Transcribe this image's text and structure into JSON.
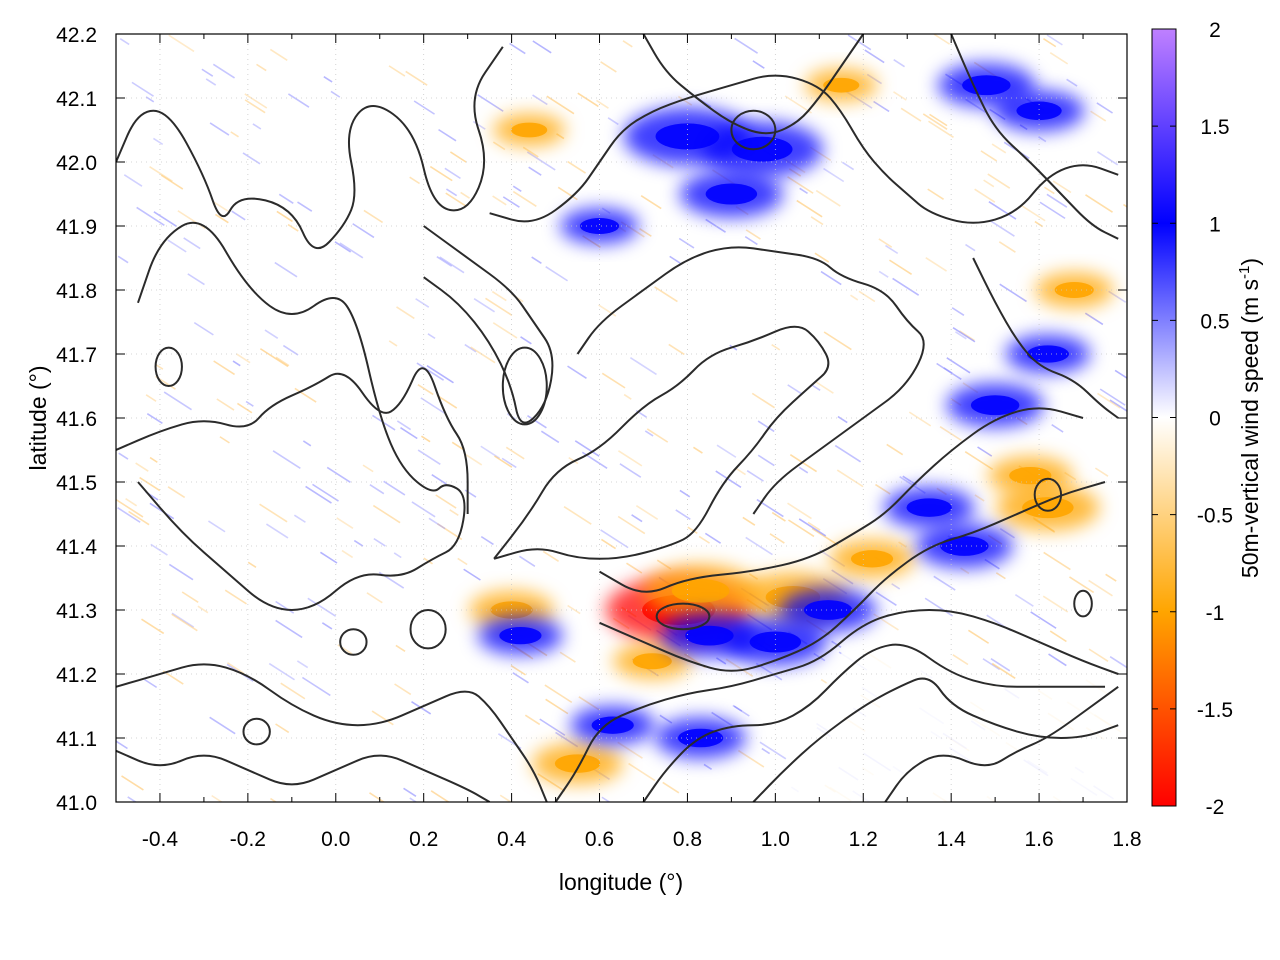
{
  "chart_data": {
    "type": "heatmap",
    "title": "",
    "xlabel": "longitude (°)",
    "ylabel": "latitude (°)",
    "xlim": [
      -0.5,
      1.8
    ],
    "ylim": [
      41.0,
      42.2
    ],
    "x_ticks": [
      "-0.4",
      "-0.2",
      "0.0",
      "0.2",
      "0.4",
      "0.6",
      "0.8",
      "1.0",
      "1.2",
      "1.4",
      "1.6",
      "1.8"
    ],
    "x_tick_values": [
      -0.4,
      -0.2,
      0.0,
      0.2,
      0.4,
      0.6,
      0.8,
      1.0,
      1.2,
      1.4,
      1.6,
      1.8
    ],
    "y_ticks": [
      "41.0",
      "41.1",
      "41.2",
      "41.3",
      "41.4",
      "41.5",
      "41.6",
      "41.7",
      "41.8",
      "41.9",
      "42.0",
      "42.1",
      "42.2"
    ],
    "y_tick_values": [
      41.0,
      41.1,
      41.2,
      41.3,
      41.4,
      41.5,
      41.6,
      41.7,
      41.8,
      41.9,
      42.0,
      42.1,
      42.2
    ],
    "grid": true,
    "colorbar": {
      "label_main": "50m-vertical wind speed (m s",
      "label_sup": "-1",
      "label_close": ")",
      "range": [
        -2,
        2
      ],
      "ticks": [
        "-2",
        "-1.5",
        "-1",
        "-0.5",
        "0",
        "0.5",
        "1",
        "1.5",
        "2"
      ],
      "tick_values": [
        -2,
        -1.5,
        -1,
        -0.5,
        0,
        0.5,
        1,
        1.5,
        2
      ],
      "colors": [
        "#ff0000",
        "#ffa500",
        "#ffffff",
        "#0000ff",
        "#bf80ff"
      ]
    },
    "hotspots": [
      {
        "lon": 0.78,
        "lat": 41.3,
        "w": -1.8
      },
      {
        "lon": 0.83,
        "lat": 41.33,
        "w": -1.3
      },
      {
        "lon": 1.04,
        "lat": 41.32,
        "w": -1.2
      },
      {
        "lon": 1.62,
        "lat": 41.46,
        "w": -1.1
      },
      {
        "lon": 1.58,
        "lat": 41.51,
        "w": -0.8
      },
      {
        "lon": 0.72,
        "lat": 41.22,
        "w": -0.7
      },
      {
        "lon": 0.4,
        "lat": 41.3,
        "w": -0.8
      },
      {
        "lon": 0.55,
        "lat": 41.06,
        "w": -0.9
      },
      {
        "lon": 1.22,
        "lat": 41.38,
        "w": -0.8
      },
      {
        "lon": 1.68,
        "lat": 41.8,
        "w": -0.7
      },
      {
        "lon": 0.44,
        "lat": 42.05,
        "w": -0.6
      },
      {
        "lon": 1.15,
        "lat": 42.12,
        "w": -0.6
      },
      {
        "lon": 0.8,
        "lat": 42.04,
        "w": 1.5
      },
      {
        "lon": 0.97,
        "lat": 42.02,
        "w": 1.4
      },
      {
        "lon": 0.9,
        "lat": 41.95,
        "w": 1.1
      },
      {
        "lon": 1.48,
        "lat": 42.12,
        "w": 1.0
      },
      {
        "lon": 1.6,
        "lat": 42.08,
        "w": 0.9
      },
      {
        "lon": 1.12,
        "lat": 41.3,
        "w": 1.0
      },
      {
        "lon": 1.0,
        "lat": 41.25,
        "w": 1.1
      },
      {
        "lon": 0.85,
        "lat": 41.26,
        "w": 1.0
      },
      {
        "lon": 1.5,
        "lat": 41.62,
        "w": 1.0
      },
      {
        "lon": 1.43,
        "lat": 41.4,
        "w": 1.0
      },
      {
        "lon": 1.35,
        "lat": 41.46,
        "w": 0.9
      },
      {
        "lon": 0.63,
        "lat": 41.12,
        "w": 0.8
      },
      {
        "lon": 0.83,
        "lat": 41.1,
        "w": 0.9
      },
      {
        "lon": 0.42,
        "lat": 41.26,
        "w": 0.8
      },
      {
        "lon": 1.62,
        "lat": 41.7,
        "w": 0.8
      },
      {
        "lon": 0.6,
        "lat": 41.9,
        "w": 0.7
      }
    ],
    "contours": [
      [
        [
          -0.5,
          42.0
        ],
        [
          -0.45,
          42.08
        ],
        [
          -0.38,
          42.08
        ],
        [
          -0.3,
          41.98
        ],
        [
          -0.26,
          41.9
        ],
        [
          -0.22,
          41.95
        ],
        [
          -0.1,
          41.93
        ],
        [
          -0.05,
          41.85
        ],
        [
          0.02,
          41.9
        ],
        [
          0.05,
          41.95
        ],
        [
          0.02,
          42.05
        ],
        [
          0.08,
          42.1
        ],
        [
          0.18,
          42.05
        ],
        [
          0.22,
          41.93
        ],
        [
          0.3,
          41.92
        ],
        [
          0.35,
          42.0
        ],
        [
          0.3,
          42.1
        ],
        [
          0.38,
          42.18
        ]
      ],
      [
        [
          -0.45,
          41.78
        ],
        [
          -0.4,
          41.88
        ],
        [
          -0.3,
          41.92
        ],
        [
          -0.2,
          41.8
        ],
        [
          -0.1,
          41.75
        ],
        [
          0.0,
          41.8
        ],
        [
          0.05,
          41.75
        ],
        [
          0.1,
          41.6
        ],
        [
          0.15,
          41.52
        ],
        [
          0.22,
          41.48
        ],
        [
          0.25,
          41.5
        ],
        [
          0.3,
          41.48
        ],
        [
          0.28,
          41.4
        ],
        [
          0.22,
          41.38
        ],
        [
          0.15,
          41.35
        ],
        [
          0.05,
          41.36
        ],
        [
          -0.05,
          41.3
        ],
        [
          -0.15,
          41.3
        ],
        [
          -0.25,
          41.36
        ],
        [
          -0.35,
          41.42
        ],
        [
          -0.45,
          41.5
        ]
      ],
      [
        [
          -0.5,
          41.55
        ],
        [
          -0.4,
          41.58
        ],
        [
          -0.3,
          41.6
        ],
        [
          -0.2,
          41.58
        ],
        [
          -0.15,
          41.62
        ],
        [
          -0.05,
          41.65
        ],
        [
          0.02,
          41.68
        ],
        [
          0.1,
          41.6
        ],
        [
          0.15,
          41.62
        ],
        [
          0.2,
          41.7
        ],
        [
          0.25,
          41.6
        ],
        [
          0.3,
          41.55
        ],
        [
          0.3,
          41.45
        ]
      ],
      [
        [
          0.36,
          41.38
        ],
        [
          0.44,
          41.45
        ],
        [
          0.5,
          41.52
        ],
        [
          0.6,
          41.55
        ],
        [
          0.7,
          41.62
        ],
        [
          0.78,
          41.65
        ],
        [
          0.85,
          41.7
        ],
        [
          0.95,
          41.72
        ],
        [
          1.05,
          41.75
        ],
        [
          1.1,
          41.72
        ],
        [
          1.13,
          41.68
        ],
        [
          1.08,
          41.65
        ],
        [
          1.0,
          41.6
        ],
        [
          0.95,
          41.55
        ],
        [
          0.88,
          41.5
        ],
        [
          0.82,
          41.42
        ],
        [
          0.76,
          41.4
        ],
        [
          0.65,
          41.38
        ],
        [
          0.55,
          41.38
        ],
        [
          0.46,
          41.4
        ],
        [
          0.36,
          41.38
        ]
      ],
      [
        [
          0.6,
          41.36
        ],
        [
          0.7,
          41.32
        ],
        [
          0.8,
          41.35
        ],
        [
          0.95,
          41.36
        ],
        [
          1.08,
          41.38
        ],
        [
          1.18,
          41.42
        ],
        [
          1.25,
          41.45
        ],
        [
          1.32,
          41.5
        ],
        [
          1.4,
          41.55
        ],
        [
          1.5,
          41.6
        ],
        [
          1.6,
          41.62
        ],
        [
          1.7,
          41.6
        ]
      ],
      [
        [
          0.6,
          41.28
        ],
        [
          0.7,
          41.25
        ],
        [
          0.8,
          41.22
        ],
        [
          0.9,
          41.2
        ],
        [
          1.0,
          41.22
        ],
        [
          1.1,
          41.25
        ],
        [
          1.18,
          41.3
        ],
        [
          1.25,
          41.35
        ],
        [
          1.35,
          41.4
        ],
        [
          1.45,
          41.42
        ],
        [
          1.55,
          41.45
        ],
        [
          1.65,
          41.48
        ],
        [
          1.75,
          41.5
        ]
      ],
      [
        [
          0.5,
          41.0
        ],
        [
          0.55,
          41.05
        ],
        [
          0.6,
          41.12
        ],
        [
          0.7,
          41.15
        ],
        [
          0.8,
          41.17
        ],
        [
          0.9,
          41.18
        ],
        [
          1.0,
          41.2
        ],
        [
          1.1,
          41.22
        ],
        [
          1.2,
          41.28
        ],
        [
          1.3,
          41.3
        ],
        [
          1.4,
          41.3
        ],
        [
          1.5,
          41.28
        ],
        [
          1.6,
          41.25
        ],
        [
          1.7,
          41.22
        ],
        [
          1.78,
          41.2
        ]
      ],
      [
        [
          0.7,
          41.0
        ],
        [
          0.75,
          41.05
        ],
        [
          0.82,
          41.1
        ],
        [
          0.9,
          41.12
        ],
        [
          1.0,
          41.12
        ],
        [
          1.08,
          41.15
        ],
        [
          1.15,
          41.2
        ],
        [
          1.22,
          41.24
        ],
        [
          1.3,
          41.25
        ],
        [
          1.4,
          41.2
        ],
        [
          1.5,
          41.18
        ],
        [
          1.6,
          41.18
        ],
        [
          1.75,
          41.18
        ]
      ],
      [
        [
          0.95,
          41.0
        ],
        [
          1.02,
          41.05
        ],
        [
          1.1,
          41.1
        ],
        [
          1.2,
          41.15
        ],
        [
          1.28,
          41.18
        ],
        [
          1.35,
          41.2
        ],
        [
          1.4,
          41.15
        ],
        [
          1.5,
          41.12
        ],
        [
          1.6,
          41.1
        ],
        [
          1.7,
          41.1
        ],
        [
          1.78,
          41.12
        ]
      ],
      [
        [
          1.25,
          41.0
        ],
        [
          1.3,
          41.05
        ],
        [
          1.38,
          41.08
        ],
        [
          1.48,
          41.05
        ],
        [
          1.55,
          41.08
        ],
        [
          1.62,
          41.1
        ],
        [
          1.72,
          41.15
        ],
        [
          1.78,
          41.18
        ]
      ],
      [
        [
          0.55,
          41.7
        ],
        [
          0.6,
          41.75
        ],
        [
          0.7,
          41.8
        ],
        [
          0.8,
          41.85
        ],
        [
          0.9,
          41.87
        ],
        [
          1.0,
          41.86
        ],
        [
          1.1,
          41.85
        ],
        [
          1.15,
          41.82
        ],
        [
          1.25,
          41.8
        ],
        [
          1.3,
          41.75
        ],
        [
          1.35,
          41.72
        ],
        [
          1.3,
          41.65
        ],
        [
          1.2,
          41.6
        ],
        [
          1.1,
          41.55
        ],
        [
          1.0,
          41.5
        ],
        [
          0.95,
          41.45
        ]
      ],
      [
        [
          0.35,
          41.92
        ],
        [
          0.45,
          41.9
        ],
        [
          0.55,
          41.95
        ],
        [
          0.6,
          42.0
        ],
        [
          0.65,
          42.05
        ],
        [
          0.72,
          42.08
        ],
        [
          0.8,
          42.1
        ],
        [
          0.9,
          42.12
        ],
        [
          1.0,
          42.14
        ],
        [
          1.1,
          42.12
        ],
        [
          1.15,
          42.08
        ],
        [
          1.2,
          42.02
        ],
        [
          1.25,
          41.98
        ],
        [
          1.3,
          41.95
        ],
        [
          1.35,
          41.92
        ],
        [
          1.45,
          41.9
        ],
        [
          1.55,
          41.92
        ],
        [
          1.62,
          41.98
        ],
        [
          1.7,
          42.0
        ],
        [
          1.78,
          41.98
        ]
      ],
      [
        [
          0.7,
          42.2
        ],
        [
          0.75,
          42.14
        ],
        [
          0.82,
          42.1
        ],
        [
          0.9,
          42.06
        ],
        [
          0.98,
          42.04
        ],
        [
          1.05,
          42.06
        ],
        [
          1.1,
          42.1
        ],
        [
          1.15,
          42.15
        ],
        [
          1.2,
          42.2
        ]
      ],
      [
        [
          1.4,
          42.2
        ],
        [
          1.45,
          42.12
        ],
        [
          1.5,
          42.05
        ],
        [
          1.58,
          42.0
        ],
        [
          1.65,
          41.95
        ],
        [
          1.72,
          41.9
        ],
        [
          1.78,
          41.88
        ]
      ],
      [
        [
          1.45,
          41.85
        ],
        [
          1.5,
          41.78
        ],
        [
          1.55,
          41.72
        ],
        [
          1.6,
          41.68
        ],
        [
          1.68,
          41.66
        ],
        [
          1.74,
          41.62
        ],
        [
          1.78,
          41.6
        ]
      ],
      [
        [
          -0.5,
          41.18
        ],
        [
          -0.4,
          41.2
        ],
        [
          -0.3,
          41.22
        ],
        [
          -0.2,
          41.2
        ],
        [
          -0.1,
          41.15
        ],
        [
          0.0,
          41.12
        ],
        [
          0.1,
          41.12
        ],
        [
          0.2,
          41.15
        ],
        [
          0.3,
          41.18
        ],
        [
          0.35,
          41.15
        ],
        [
          0.4,
          41.1
        ],
        [
          0.45,
          41.05
        ],
        [
          0.48,
          41.0
        ]
      ],
      [
        [
          -0.5,
          41.08
        ],
        [
          -0.4,
          41.05
        ],
        [
          -0.3,
          41.08
        ],
        [
          -0.2,
          41.05
        ],
        [
          -0.1,
          41.02
        ],
        [
          0.0,
          41.05
        ],
        [
          0.1,
          41.08
        ],
        [
          0.2,
          41.05
        ],
        [
          0.3,
          41.02
        ],
        [
          0.35,
          41.0
        ]
      ],
      [
        [
          0.2,
          41.9
        ],
        [
          0.3,
          41.85
        ],
        [
          0.4,
          41.8
        ],
        [
          0.45,
          41.75
        ],
        [
          0.5,
          41.7
        ],
        [
          0.48,
          41.62
        ],
        [
          0.42,
          41.58
        ],
        [
          0.4,
          41.65
        ],
        [
          0.35,
          41.72
        ],
        [
          0.28,
          41.78
        ],
        [
          0.2,
          41.82
        ]
      ]
    ],
    "loops": [
      {
        "lon": 0.79,
        "lat": 41.29,
        "rx": 0.06,
        "ry": 0.02
      },
      {
        "lon": 0.95,
        "lat": 42.05,
        "rx": 0.05,
        "ry": 0.03
      },
      {
        "lon": 1.62,
        "lat": 41.48,
        "rx": 0.03,
        "ry": 0.025
      },
      {
        "lon": -0.38,
        "lat": 41.68,
        "rx": 0.03,
        "ry": 0.03
      },
      {
        "lon": 0.21,
        "lat": 41.27,
        "rx": 0.04,
        "ry": 0.03
      },
      {
        "lon": 0.04,
        "lat": 41.25,
        "rx": 0.03,
        "ry": 0.02
      },
      {
        "lon": 0.43,
        "lat": 41.65,
        "rx": 0.05,
        "ry": 0.06
      },
      {
        "lon": 1.7,
        "lat": 41.31,
        "rx": 0.02,
        "ry": 0.02
      },
      {
        "lon": -0.18,
        "lat": 41.11,
        "rx": 0.03,
        "ry": 0.02
      }
    ]
  }
}
